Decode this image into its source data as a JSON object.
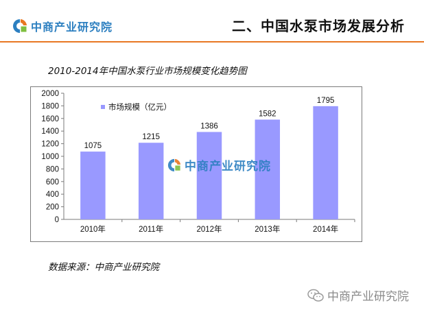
{
  "header": {
    "brand": "中商产业研究院",
    "title": "二、中国水泵市场发展分析",
    "accent_color": "#e87722",
    "brand_color": "#2c7fc0"
  },
  "chart_data": {
    "type": "bar",
    "title": "2010-2014年中国水泵行业市场规模变化趋势图",
    "categories": [
      "2010年",
      "2011年",
      "2012年",
      "2013年",
      "2014年"
    ],
    "series": [
      {
        "name": "市场规模（亿元）",
        "values": [
          1075,
          1215,
          1386,
          1582,
          1795
        ],
        "color": "#9999ff"
      }
    ],
    "ylim": [
      0,
      2000
    ],
    "yticks": [
      0,
      200,
      400,
      600,
      800,
      1000,
      1200,
      1400,
      1600,
      1800,
      2000
    ],
    "grid": false,
    "legend_position": "top-left",
    "data_labels": true,
    "watermark": "中商产业研究院"
  },
  "source": "数据来源：中商产业研究院",
  "footer": {
    "wechat_account": "中商产业研究院"
  }
}
